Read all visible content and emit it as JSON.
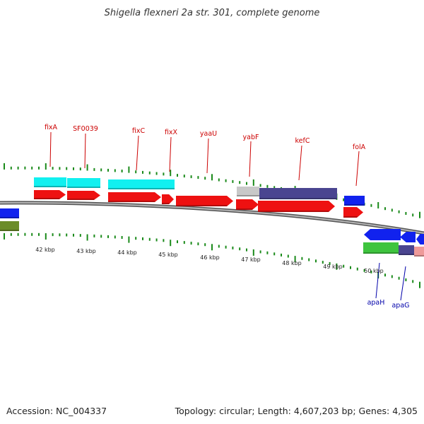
{
  "title": "Shigella flexneri 2a str. 301, complete genome",
  "footer": {
    "accession": "Accession: NC_004337",
    "info": "Topology: circular; Length: 4,607,203 bp; Genes: 4,305"
  },
  "colors": {
    "tick": "#1a8a1a",
    "backbone": "#8c8c8c",
    "label_forward": "#cc0000",
    "label_reverse": "#0000aa",
    "cds_forward": "#ee1111",
    "cds_reverse": "#1122ee",
    "cyan": "#11f0f0",
    "navy": "#4a4590",
    "grey": "#c8c8c8",
    "green": "#3ec43e",
    "olive": "#6b8c28",
    "salmon": "#ee9a9a"
  },
  "scale": {
    "unit": "kbp",
    "labels": [
      "42 kbp",
      "43 kbp",
      "44 kbp",
      "45 kbp",
      "46 kbp",
      "47 kbp",
      "48 kbp",
      "49 kbp",
      "50 kbp"
    ]
  },
  "genes_forward": [
    {
      "label": "fixA",
      "color": "label_forward"
    },
    {
      "label": "SF0039",
      "color": "label_forward"
    },
    {
      "label": "fixC",
      "color": "label_forward"
    },
    {
      "label": "fixX",
      "color": "label_forward"
    },
    {
      "label": "yaaU",
      "color": "label_forward"
    },
    {
      "label": "yabF",
      "color": "label_forward"
    },
    {
      "label": "kefC",
      "color": "label_forward"
    },
    {
      "label": "folA",
      "color": "label_forward"
    }
  ],
  "genes_reverse": [
    {
      "label": "apaH",
      "color": "label_reverse"
    },
    {
      "label": "apaG",
      "color": "label_reverse"
    }
  ]
}
